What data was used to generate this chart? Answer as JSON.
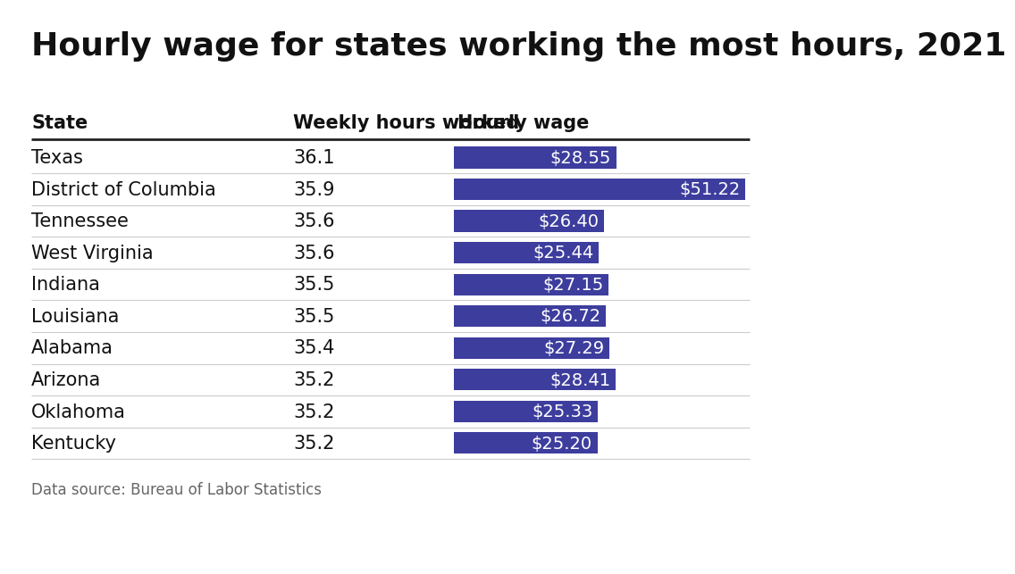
{
  "title": "Hourly wage for states working the most hours, 2021",
  "col_state": "State",
  "col_hours": "Weekly hours worked",
  "col_wage": "Hourly wage",
  "footnote": "Data source: Bureau of Labor Statistics",
  "states": [
    "Texas",
    "District of Columbia",
    "Tennessee",
    "West Virginia",
    "Indiana",
    "Louisiana",
    "Alabama",
    "Arizona",
    "Oklahoma",
    "Kentucky"
  ],
  "hours": [
    36.1,
    35.9,
    35.6,
    35.6,
    35.5,
    35.5,
    35.4,
    35.2,
    35.2,
    35.2
  ],
  "wages": [
    28.55,
    51.22,
    26.4,
    25.44,
    27.15,
    26.72,
    27.29,
    28.41,
    25.33,
    25.2
  ],
  "bar_color": "#3d3d9e",
  "text_color": "#ffffff",
  "header_line_color": "#222222",
  "row_line_color": "#cccccc",
  "background_color": "#ffffff",
  "title_fontsize": 26,
  "header_fontsize": 15,
  "cell_fontsize": 15,
  "bar_label_fontsize": 14,
  "footnote_fontsize": 12,
  "max_wage": 51.22
}
